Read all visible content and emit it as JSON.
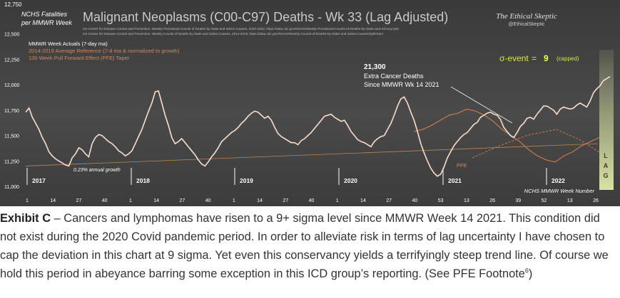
{
  "chart_data": {
    "type": "line",
    "title": "Malignant Neoplasms (C00-C97) Deaths - Wk 33 (Lag Adjusted)",
    "ylabel": "NCHS Fatalities per MMWR Week",
    "xlabel": "NCHS MMWR Week Number",
    "source_lines": [
      "US Center for Disease Control and Prevention: Weekly Provisional Counts of Deaths by State and Select Causes, 2020-2022; https://data.cdc.gov/NCHS/Weekly-Provisional-Counts-of-Deaths-by-State-and-S/muzy-jte6",
      "US Center for Disease Control and Prevention: Weekly Counts of Deaths by State and Select Causes, 2014-2019; https://data.cdc.gov/NCHS/Weekly-Counts-of-Deaths-by-State-and-Select-Causes/3yf8-kanr"
    ],
    "brand": {
      "name": "The Ethical Skeptic",
      "handle": "@EthicalSkeptic"
    },
    "ylim": [
      11000,
      12750
    ],
    "yticks": [
      "12,750",
      "12,500",
      "12,250",
      "12,000",
      "11,750",
      "11,500",
      "11,250",
      "11,000"
    ],
    "xticks": [
      "1",
      "14",
      "27",
      "40",
      "1",
      "14",
      "27",
      "40",
      "1",
      "14",
      "27",
      "40",
      "1",
      "14",
      "27",
      "40",
      "53",
      "13",
      "26",
      "39",
      "52",
      "13",
      "26"
    ],
    "years": [
      "2017",
      "2018",
      "2019",
      "2020",
      "2021",
      "2022"
    ],
    "legend": [
      {
        "label": "MMWR Week Actuals (7-day ma)",
        "color": "#ffffff"
      },
      {
        "label": "2014-2019 Average Reference (7-d ma & normalized to growth)",
        "color": "#d2875a"
      },
      {
        "label": "130 Week Pull Forward Effect (PFE) Taper",
        "color": "#d2875a"
      }
    ],
    "sigma": {
      "prefix": "σ-event",
      "eq": "=",
      "value": "9",
      "note": "(capped)"
    },
    "annotation": {
      "value": "21,300",
      "line1": "Extra Cancer Deaths",
      "line2": "Since MMWR Wk 14 2021"
    },
    "trend_label": "0.23% annual growth",
    "pfe_label": "PFE",
    "lag_letters": [
      "L",
      "A",
      "G"
    ],
    "colors": {
      "actual": "#ffffff",
      "reference": "#c8784a",
      "trend": "#b8865a",
      "sigma": "#d7e63a",
      "lag": "#e9f2a0"
    },
    "series": [
      {
        "name": "MMWR Week Actuals (7-day ma)",
        "values": [
          11730,
          11770,
          11680,
          11620,
          11560,
          11480,
          11420,
          11340,
          11300,
          11270,
          11250,
          11230,
          11210,
          11200,
          11280,
          11320,
          11380,
          11360,
          11320,
          11290,
          11420,
          11480,
          11510,
          11500,
          11470,
          11440,
          11420,
          11390,
          11350,
          11330,
          11300,
          11320,
          11350,
          11420,
          11490,
          11560,
          11650,
          11740,
          11820,
          11930,
          11940,
          11820,
          11700,
          11600,
          11480,
          11420,
          11440,
          11470,
          11430,
          11390,
          11350,
          11310,
          11260,
          11220,
          11200,
          11240,
          11290,
          11330,
          11380,
          11440,
          11470,
          11500,
          11530,
          11550,
          11580,
          11620,
          11650,
          11690,
          11720,
          11740,
          11730,
          11700,
          11670,
          11690,
          11650,
          11580,
          11520,
          11490,
          11470,
          11450,
          11430,
          11430,
          11410,
          11450,
          11470,
          11500,
          11530,
          11570,
          11610,
          11650,
          11690,
          11700,
          11710,
          11680,
          11660,
          11640,
          11650,
          11600,
          11540,
          11500,
          11460,
          11440,
          11430,
          11410,
          11390,
          11440,
          11470,
          11490,
          11500,
          11560,
          11620,
          11700,
          11790,
          11860,
          11880,
          11820,
          11730,
          11650,
          11540,
          11420,
          11330,
          11250,
          11180,
          11130,
          11100,
          11120,
          11190,
          11280,
          11340,
          11400,
          11440,
          11480,
          11510,
          11530,
          11570,
          11610,
          11630,
          11680,
          11700,
          11720,
          11730,
          11710,
          11700,
          11660,
          11580,
          11540,
          11500,
          11480,
          11530,
          11590,
          11620,
          11670,
          11680,
          11660,
          11710,
          11750,
          11790,
          11790,
          11770,
          11750,
          11710,
          11760,
          11780,
          11770,
          11760,
          11770,
          11800,
          11820,
          11800,
          11780,
          11840,
          11920,
          11960,
          11990,
          12040,
          12060,
          12080
        ]
      },
      {
        "name": "2014-2019 Average Reference (7-d ma & normalized to growth)",
        "values": [
          11540,
          11560,
          11600,
          11650,
          11700,
          11720,
          11760,
          11740,
          11700,
          11640,
          11560,
          11500,
          11440,
          11360,
          11300,
          11260,
          11240,
          11300,
          11340,
          11400,
          11440,
          11480
        ]
      }
    ]
  },
  "caption": {
    "label": "Exhibit C",
    "text": " – Cancers and lymphomas have risen to a 9+ sigma level since MMWR Week 14 2021. This condition did not exist during the 2020 Covid pandemic period. In order to alleviate risk in terms of lag uncertainty I have chosen to cap the deviation in this chart at 9 sigma. Yet even this conservancy yields a terrifyingly steep trend line. Of course we hold this period in abeyance barring some exception in this ICD group’s reporting. (See PFE Footnote",
    "footnote": "6",
    "close": ")"
  }
}
